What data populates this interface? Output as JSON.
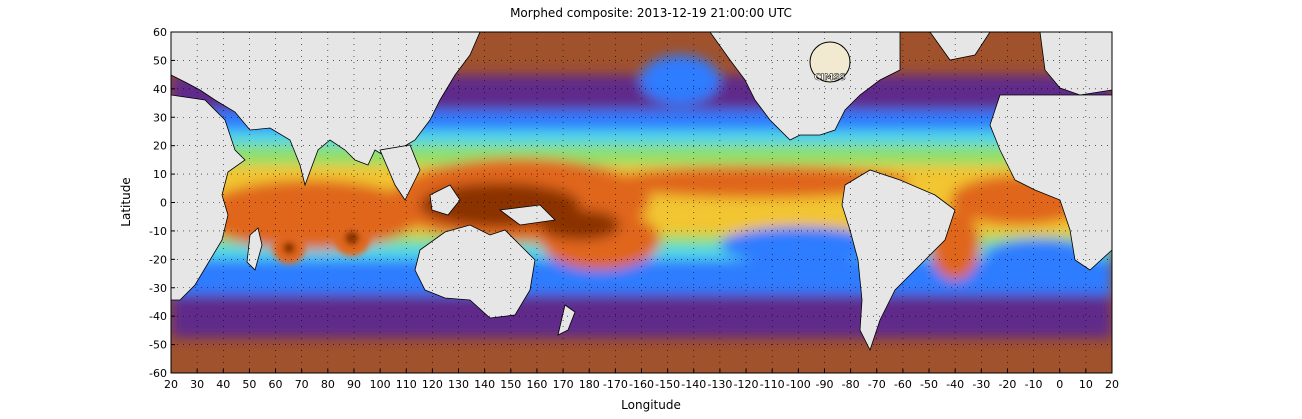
{
  "title": "Morphed composite: 2013-12-19 21:00:00 UTC",
  "x_axis": {
    "label": "Longitude",
    "ticks": [
      "20",
      "30",
      "40",
      "50",
      "60",
      "70",
      "80",
      "90",
      "100",
      "110",
      "120",
      "130",
      "140",
      "150",
      "160",
      "170",
      "180",
      "-170",
      "-160",
      "-150",
      "-140",
      "-130",
      "-120",
      "-110",
      "-100",
      "-90",
      "-80",
      "-70",
      "-60",
      "-50",
      "-40",
      "-30",
      "-20",
      "-10",
      "0",
      "10",
      "20"
    ]
  },
  "y_axis": {
    "label": "Latitude",
    "ticks": [
      "60",
      "50",
      "40",
      "30",
      "20",
      "10",
      "0",
      "-10",
      "-20",
      "-30",
      "-40",
      "-50",
      "-60"
    ]
  },
  "logo": {
    "text": "CIMSS"
  },
  "colors": {
    "land": "#e6e6e6",
    "very_dry": "#a0522d",
    "dry": "#5e2c8a",
    "low": "#2f7bff",
    "mid_low": "#4fd6e8",
    "mid": "#8fe06a",
    "mid_high": "#f2c531",
    "high": "#e0661a",
    "very_high": "#8a3200"
  },
  "grid": "dotted"
}
